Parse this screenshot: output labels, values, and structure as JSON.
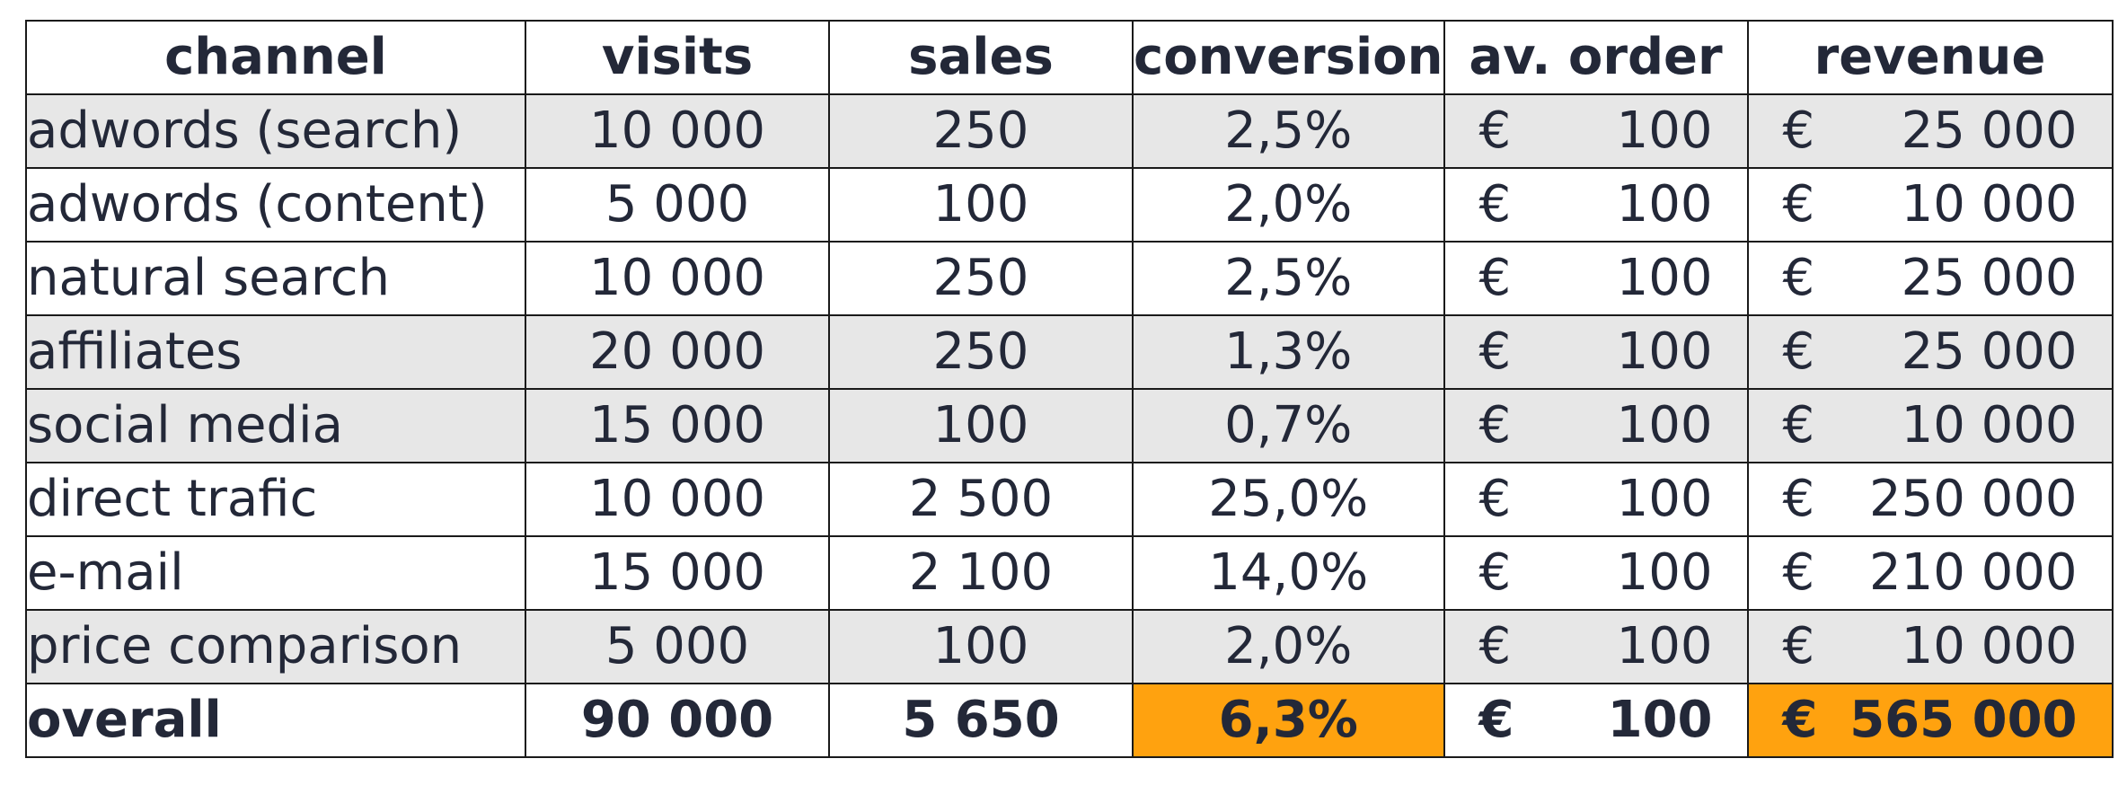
{
  "headers": [
    "channel",
    "visits",
    "sales",
    "conversion",
    "av. order",
    "revenue"
  ],
  "rows": [
    {
      "channel": "adwords (search)",
      "visits": "10 000",
      "sales": "250",
      "conversion": "2,5%",
      "order_currency": "€",
      "order": "100",
      "revenue_currency": "€",
      "revenue": "25 000"
    },
    {
      "channel": "adwords (content)",
      "visits": "5 000",
      "sales": "100",
      "conversion": "2,0%",
      "order_currency": "€",
      "order": "100",
      "revenue_currency": "€",
      "revenue": "10 000"
    },
    {
      "channel": "natural search",
      "visits": "10 000",
      "sales": "250",
      "conversion": "2,5%",
      "order_currency": "€",
      "order": "100",
      "revenue_currency": "€",
      "revenue": "25 000"
    },
    {
      "channel": "affiliates",
      "visits": "20 000",
      "sales": "250",
      "conversion": "1,3%",
      "order_currency": "€",
      "order": "100",
      "revenue_currency": "€",
      "revenue": "25 000"
    },
    {
      "channel": "social media",
      "visits": "15 000",
      "sales": "100",
      "conversion": "0,7%",
      "order_currency": "€",
      "order": "100",
      "revenue_currency": "€",
      "revenue": "10 000"
    },
    {
      "channel": "direct trafic",
      "visits": "10 000",
      "sales": "2 500",
      "conversion": "25,0%",
      "order_currency": "€",
      "order": "100",
      "revenue_currency": "€",
      "revenue": "250 000"
    },
    {
      "channel": "e-mail",
      "visits": "15 000",
      "sales": "2 100",
      "conversion": "14,0%",
      "order_currency": "€",
      "order": "100",
      "revenue_currency": "€",
      "revenue": "210 000"
    },
    {
      "channel": "price comparison",
      "visits": "5 000",
      "sales": "100",
      "conversion": "2,0%",
      "order_currency": "€",
      "order": "100",
      "revenue_currency": "€",
      "revenue": "10 000"
    }
  ],
  "total": {
    "channel": "overall",
    "visits": "90 000",
    "sales": "5 650",
    "conversion": "6,3%",
    "order_currency": "€",
    "order": "100",
    "revenue_currency": "€",
    "revenue": "565 000"
  },
  "colors": {
    "shaded_row": "#e7e7e7",
    "highlight": "#ffa20f",
    "text": "#232838"
  }
}
